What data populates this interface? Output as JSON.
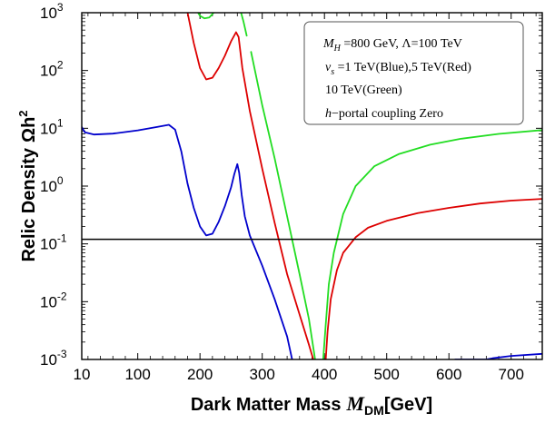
{
  "chart_data": {
    "type": "line",
    "title": "",
    "xlabel": "Dark Matter Mass",
    "xlabel_symbol": "M",
    "xlabel_subscript": "DM",
    "xlabel_unit": "[GeV]",
    "ylabel": "Relic Density",
    "ylabel_symbol": "Ωh",
    "ylabel_power": "2",
    "xlim": [
      10,
      750
    ],
    "ylim": [
      0.001,
      1000
    ],
    "y_scale": "log",
    "x_ticks": [
      10,
      100,
      200,
      300,
      400,
      500,
      600,
      700
    ],
    "y_ticks": [
      {
        "base": "10",
        "exp": "-3",
        "value": 0.001
      },
      {
        "base": "10",
        "exp": "-2",
        "value": 0.01
      },
      {
        "base": "10",
        "exp": "-1",
        "value": 0.1
      },
      {
        "base": "10",
        "exp": "0",
        "value": 1
      },
      {
        "base": "10",
        "exp": "1",
        "value": 10
      },
      {
        "base": "10",
        "exp": "2",
        "value": 100
      },
      {
        "base": "10",
        "exp": "3",
        "value": 1000
      }
    ],
    "reference_line": {
      "y": 0.12,
      "color": "#000000"
    },
    "legend": {
      "placement": "top-right",
      "line1": {
        "m": "M",
        "m_sub": "H",
        "text": " =800 GeV, Λ=100 TeV"
      },
      "line2": {
        "v": "v",
        "v_sub": "s",
        "text": " =1 TeV(Blue),5 TeV(Red)"
      },
      "line3": "10 TeV(Green)",
      "line4_italic": "h",
      "line4": "−portal coupling Zero"
    },
    "series": [
      {
        "name": "v_s = 1 TeV",
        "color": "#0000cc",
        "segments": [
          [
            [
              10,
              10.5
            ],
            [
              15,
              8.5
            ],
            [
              30,
              7.8
            ],
            [
              60,
              8.1
            ],
            [
              100,
              9.2
            ],
            [
              130,
              10.5
            ],
            [
              150,
              11.5
            ],
            [
              160,
              9.5
            ],
            [
              170,
              4.0
            ],
            [
              180,
              1.1
            ],
            [
              190,
              0.42
            ],
            [
              200,
              0.2
            ],
            [
              210,
              0.14
            ],
            [
              220,
              0.15
            ],
            [
              230,
              0.24
            ],
            [
              240,
              0.45
            ],
            [
              250,
              0.95
            ],
            [
              255,
              1.6
            ],
            [
              260,
              2.4
            ],
            [
              263,
              1.7
            ],
            [
              267,
              0.7
            ],
            [
              272,
              0.3
            ],
            [
              280,
              0.14
            ],
            [
              300,
              0.042
            ],
            [
              320,
              0.011
            ],
            [
              340,
              0.0025
            ],
            [
              348,
              0.001
            ]
          ],
          [
            [
              610,
              0.001
            ],
            [
              660,
              0.001
            ],
            [
              670,
              0.00105
            ],
            [
              700,
              0.00115
            ],
            [
              750,
              0.00125
            ]
          ]
        ]
      },
      {
        "name": "v_s = 5 TeV",
        "color": "#dd0000",
        "segments": [
          [
            [
              180,
              1000
            ],
            [
              190,
              300
            ],
            [
              200,
              110
            ],
            [
              210,
              70
            ],
            [
              220,
              75
            ],
            [
              230,
              110
            ],
            [
              240,
              180
            ],
            [
              250,
              320
            ],
            [
              258,
              460
            ],
            [
              262,
              380
            ],
            [
              268,
              110
            ],
            [
              280,
              20
            ],
            [
              300,
              2.0
            ],
            [
              320,
              0.23
            ],
            [
              340,
              0.03
            ],
            [
              360,
              0.006
            ],
            [
              375,
              0.0018
            ],
            [
              382,
              0.001
            ]
          ],
          [
            [
              402,
              0.001
            ],
            [
              405,
              0.003
            ],
            [
              410,
              0.011
            ],
            [
              420,
              0.035
            ],
            [
              430,
              0.07
            ],
            [
              450,
              0.13
            ],
            [
              470,
              0.19
            ],
            [
              500,
              0.25
            ],
            [
              550,
              0.34
            ],
            [
              600,
              0.42
            ],
            [
              650,
              0.5
            ],
            [
              700,
              0.56
            ],
            [
              750,
              0.6
            ]
          ]
        ]
      },
      {
        "name": "v_s = 10 TeV",
        "color": "#22dd22",
        "segments": [
          [
            [
              197,
              1000
            ],
            [
              200,
              880
            ],
            [
              207,
              800
            ],
            [
              215,
              830
            ],
            [
              222,
              1000
            ]
          ],
          [
            [
              266,
              1000
            ],
            [
              270,
              700
            ],
            [
              275,
              400
            ]
          ],
          [
            [
              282,
              210
            ],
            [
              300,
              25
            ],
            [
              320,
              3.0
            ],
            [
              340,
              0.3
            ],
            [
              360,
              0.03
            ],
            [
              375,
              0.005
            ],
            [
              385,
              0.001
            ]
          ],
          [
            [
              398,
              0.001
            ],
            [
              402,
              0.004
            ],
            [
              407,
              0.02
            ],
            [
              415,
              0.07
            ],
            [
              430,
              0.33
            ],
            [
              450,
              1.0
            ],
            [
              480,
              2.2
            ],
            [
              520,
              3.6
            ],
            [
              570,
              5.2
            ],
            [
              620,
              6.6
            ],
            [
              680,
              8.0
            ],
            [
              750,
              9.3
            ]
          ]
        ]
      }
    ]
  }
}
